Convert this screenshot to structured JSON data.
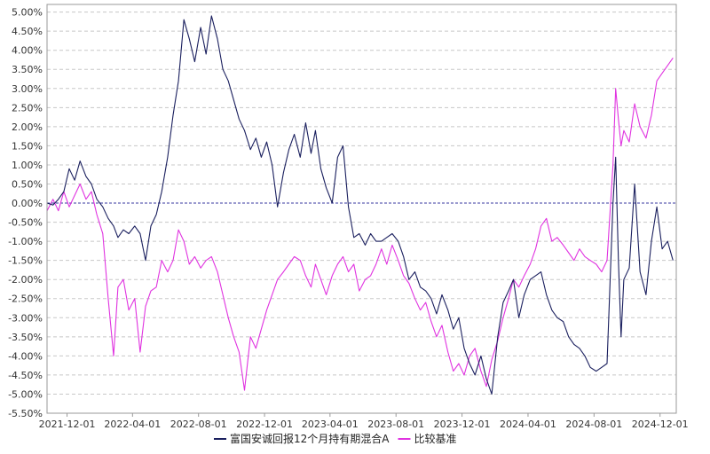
{
  "chart_data": {
    "type": "line",
    "title": "",
    "xlabel": "",
    "ylabel": "",
    "x_tick_labels": [
      "2021-12-01",
      "2022-04-01",
      "2022-08-01",
      "2022-12-01",
      "2023-04-01",
      "2023-08-01",
      "2023-12-01",
      "2024-04-01",
      "2024-08-01",
      "2024-12-01"
    ],
    "y_tick_labels": [
      "5.00%",
      "4.50%",
      "4.00%",
      "3.50%",
      "3.00%",
      "2.50%",
      "2.00%",
      "1.50%",
      "1.00%",
      "0.50%",
      "0.00%",
      "-0.50%",
      "-1.00%",
      "-1.50%",
      "-2.00%",
      "-2.50%",
      "-3.00%",
      "-3.50%",
      "-4.00%",
      "-4.50%",
      "-5.00%",
      "-5.50%"
    ],
    "ylim": [
      -5.5,
      5.2
    ],
    "y_unit": "%",
    "grid": true,
    "legend_position": "bottom-center",
    "zero_line": true,
    "series": [
      {
        "name": "富国安诚回报12个月持有期混合A",
        "color": "#1a1f5e",
        "points": [
          [
            "2021-10-25",
            0.0
          ],
          [
            "2021-11-05",
            -0.05
          ],
          [
            "2021-11-15",
            0.1
          ],
          [
            "2021-11-25",
            0.3
          ],
          [
            "2021-12-05",
            0.9
          ],
          [
            "2021-12-15",
            0.6
          ],
          [
            "2021-12-25",
            1.1
          ],
          [
            "2022-01-05",
            0.7
          ],
          [
            "2022-01-15",
            0.5
          ],
          [
            "2022-01-25",
            0.1
          ],
          [
            "2022-02-05",
            -0.1
          ],
          [
            "2022-02-15",
            -0.4
          ],
          [
            "2022-02-25",
            -0.6
          ],
          [
            "2022-03-05",
            -0.9
          ],
          [
            "2022-03-15",
            -0.7
          ],
          [
            "2022-03-25",
            -0.8
          ],
          [
            "2022-04-05",
            -0.6
          ],
          [
            "2022-04-15",
            -0.8
          ],
          [
            "2022-04-25",
            -1.5
          ],
          [
            "2022-05-05",
            -0.6
          ],
          [
            "2022-05-15",
            -0.3
          ],
          [
            "2022-05-25",
            0.3
          ],
          [
            "2022-06-05",
            1.2
          ],
          [
            "2022-06-15",
            2.3
          ],
          [
            "2022-06-25",
            3.2
          ],
          [
            "2022-07-05",
            4.8
          ],
          [
            "2022-07-15",
            4.3
          ],
          [
            "2022-07-25",
            3.7
          ],
          [
            "2022-08-05",
            4.6
          ],
          [
            "2022-08-15",
            3.9
          ],
          [
            "2022-08-25",
            4.9
          ],
          [
            "2022-09-05",
            4.3
          ],
          [
            "2022-09-15",
            3.5
          ],
          [
            "2022-09-25",
            3.2
          ],
          [
            "2022-10-05",
            2.7
          ],
          [
            "2022-10-15",
            2.2
          ],
          [
            "2022-10-25",
            1.9
          ],
          [
            "2022-11-05",
            1.4
          ],
          [
            "2022-11-15",
            1.7
          ],
          [
            "2022-11-25",
            1.2
          ],
          [
            "2022-12-05",
            1.6
          ],
          [
            "2022-12-15",
            1.0
          ],
          [
            "2022-12-25",
            -0.1
          ],
          [
            "2023-01-05",
            0.8
          ],
          [
            "2023-01-15",
            1.4
          ],
          [
            "2023-01-25",
            1.8
          ],
          [
            "2023-02-05",
            1.2
          ],
          [
            "2023-02-15",
            2.1
          ],
          [
            "2023-02-25",
            1.3
          ],
          [
            "2023-03-05",
            1.9
          ],
          [
            "2023-03-15",
            0.9
          ],
          [
            "2023-03-25",
            0.4
          ],
          [
            "2023-04-05",
            0.0
          ],
          [
            "2023-04-15",
            1.2
          ],
          [
            "2023-04-25",
            1.5
          ],
          [
            "2023-05-05",
            -0.1
          ],
          [
            "2023-05-15",
            -0.9
          ],
          [
            "2023-05-25",
            -0.8
          ],
          [
            "2023-06-05",
            -1.1
          ],
          [
            "2023-06-15",
            -0.8
          ],
          [
            "2023-06-25",
            -1.0
          ],
          [
            "2023-07-05",
            -1.0
          ],
          [
            "2023-07-15",
            -0.9
          ],
          [
            "2023-07-25",
            -0.8
          ],
          [
            "2023-08-05",
            -1.0
          ],
          [
            "2023-08-15",
            -1.4
          ],
          [
            "2023-08-25",
            -2.0
          ],
          [
            "2023-09-05",
            -1.8
          ],
          [
            "2023-09-15",
            -2.2
          ],
          [
            "2023-09-25",
            -2.3
          ],
          [
            "2023-10-05",
            -2.5
          ],
          [
            "2023-10-15",
            -2.9
          ],
          [
            "2023-10-25",
            -2.4
          ],
          [
            "2023-11-05",
            -2.8
          ],
          [
            "2023-11-15",
            -3.3
          ],
          [
            "2023-11-25",
            -3.0
          ],
          [
            "2023-12-05",
            -3.8
          ],
          [
            "2023-12-15",
            -4.2
          ],
          [
            "2023-12-25",
            -4.5
          ],
          [
            "2024-01-05",
            -4.0
          ],
          [
            "2024-01-15",
            -4.6
          ],
          [
            "2024-01-25",
            -5.0
          ],
          [
            "2024-02-05",
            -3.5
          ],
          [
            "2024-02-15",
            -2.6
          ],
          [
            "2024-02-25",
            -2.3
          ],
          [
            "2024-03-05",
            -2.0
          ],
          [
            "2024-03-15",
            -3.0
          ],
          [
            "2024-03-25",
            -2.4
          ],
          [
            "2024-04-05",
            -2.0
          ],
          [
            "2024-04-15",
            -1.9
          ],
          [
            "2024-04-25",
            -1.8
          ],
          [
            "2024-05-05",
            -2.4
          ],
          [
            "2024-05-15",
            -2.8
          ],
          [
            "2024-05-25",
            -3.0
          ],
          [
            "2024-06-05",
            -3.1
          ],
          [
            "2024-06-15",
            -3.5
          ],
          [
            "2024-06-25",
            -3.7
          ],
          [
            "2024-07-05",
            -3.8
          ],
          [
            "2024-07-15",
            -4.0
          ],
          [
            "2024-07-25",
            -4.3
          ],
          [
            "2024-08-05",
            -4.4
          ],
          [
            "2024-08-15",
            -4.3
          ],
          [
            "2024-08-25",
            -4.2
          ],
          [
            "2024-09-05",
            0.0
          ],
          [
            "2024-09-10",
            1.2
          ],
          [
            "2024-09-15",
            -1.5
          ],
          [
            "2024-09-20",
            -3.5
          ],
          [
            "2024-09-25",
            -2.0
          ],
          [
            "2024-10-05",
            -1.7
          ],
          [
            "2024-10-15",
            0.5
          ],
          [
            "2024-10-25",
            -1.8
          ],
          [
            "2024-11-05",
            -2.4
          ],
          [
            "2024-11-15",
            -1.0
          ],
          [
            "2024-11-25",
            -0.1
          ],
          [
            "2024-12-05",
            -1.2
          ],
          [
            "2024-12-15",
            -1.0
          ],
          [
            "2024-12-25",
            -1.5
          ]
        ]
      },
      {
        "name": "比较基准",
        "color": "#e033e0",
        "points": [
          [
            "2021-10-25",
            -0.2
          ],
          [
            "2021-11-05",
            0.1
          ],
          [
            "2021-11-15",
            -0.2
          ],
          [
            "2021-11-25",
            0.3
          ],
          [
            "2021-12-05",
            -0.1
          ],
          [
            "2021-12-15",
            0.2
          ],
          [
            "2021-12-25",
            0.5
          ],
          [
            "2022-01-05",
            0.1
          ],
          [
            "2022-01-15",
            0.3
          ],
          [
            "2022-01-25",
            -0.3
          ],
          [
            "2022-02-05",
            -0.8
          ],
          [
            "2022-02-15",
            -2.5
          ],
          [
            "2022-02-25",
            -4.0
          ],
          [
            "2022-03-05",
            -2.2
          ],
          [
            "2022-03-15",
            -2.0
          ],
          [
            "2022-03-25",
            -2.8
          ],
          [
            "2022-04-05",
            -2.5
          ],
          [
            "2022-04-15",
            -3.9
          ],
          [
            "2022-04-25",
            -2.7
          ],
          [
            "2022-05-05",
            -2.3
          ],
          [
            "2022-05-15",
            -2.2
          ],
          [
            "2022-05-25",
            -1.5
          ],
          [
            "2022-06-05",
            -1.8
          ],
          [
            "2022-06-15",
            -1.5
          ],
          [
            "2022-06-25",
            -0.7
          ],
          [
            "2022-07-05",
            -1.0
          ],
          [
            "2022-07-15",
            -1.6
          ],
          [
            "2022-07-25",
            -1.4
          ],
          [
            "2022-08-05",
            -1.7
          ],
          [
            "2022-08-15",
            -1.5
          ],
          [
            "2022-08-25",
            -1.4
          ],
          [
            "2022-09-05",
            -1.8
          ],
          [
            "2022-09-15",
            -2.4
          ],
          [
            "2022-09-25",
            -3.0
          ],
          [
            "2022-10-05",
            -3.5
          ],
          [
            "2022-10-15",
            -3.9
          ],
          [
            "2022-10-25",
            -4.9
          ],
          [
            "2022-11-05",
            -3.5
          ],
          [
            "2022-11-15",
            -3.8
          ],
          [
            "2022-11-25",
            -3.3
          ],
          [
            "2022-12-05",
            -2.8
          ],
          [
            "2022-12-15",
            -2.4
          ],
          [
            "2022-12-25",
            -2.0
          ],
          [
            "2023-01-05",
            -1.8
          ],
          [
            "2023-01-15",
            -1.6
          ],
          [
            "2023-01-25",
            -1.4
          ],
          [
            "2023-02-05",
            -1.5
          ],
          [
            "2023-02-15",
            -1.9
          ],
          [
            "2023-02-25",
            -2.2
          ],
          [
            "2023-03-05",
            -1.6
          ],
          [
            "2023-03-15",
            -2.0
          ],
          [
            "2023-03-25",
            -2.4
          ],
          [
            "2023-04-05",
            -1.9
          ],
          [
            "2023-04-15",
            -1.6
          ],
          [
            "2023-04-25",
            -1.4
          ],
          [
            "2023-05-05",
            -1.8
          ],
          [
            "2023-05-15",
            -1.6
          ],
          [
            "2023-05-25",
            -2.3
          ],
          [
            "2023-06-05",
            -2.0
          ],
          [
            "2023-06-15",
            -1.9
          ],
          [
            "2023-06-25",
            -1.6
          ],
          [
            "2023-07-05",
            -1.2
          ],
          [
            "2023-07-15",
            -1.6
          ],
          [
            "2023-07-25",
            -1.1
          ],
          [
            "2023-08-05",
            -1.5
          ],
          [
            "2023-08-15",
            -1.9
          ],
          [
            "2023-08-25",
            -2.1
          ],
          [
            "2023-09-05",
            -2.5
          ],
          [
            "2023-09-15",
            -2.8
          ],
          [
            "2023-09-25",
            -2.6
          ],
          [
            "2023-10-05",
            -3.1
          ],
          [
            "2023-10-15",
            -3.5
          ],
          [
            "2023-10-25",
            -3.2
          ],
          [
            "2023-11-05",
            -3.9
          ],
          [
            "2023-11-15",
            -4.4
          ],
          [
            "2023-11-25",
            -4.2
          ],
          [
            "2023-12-05",
            -4.5
          ],
          [
            "2023-12-15",
            -4.0
          ],
          [
            "2023-12-25",
            -3.8
          ],
          [
            "2024-01-05",
            -4.4
          ],
          [
            "2024-01-15",
            -4.8
          ],
          [
            "2024-01-25",
            -4.1
          ],
          [
            "2024-02-05",
            -3.6
          ],
          [
            "2024-02-15",
            -3.0
          ],
          [
            "2024-02-25",
            -2.5
          ],
          [
            "2024-03-05",
            -2.0
          ],
          [
            "2024-03-15",
            -2.2
          ],
          [
            "2024-03-25",
            -1.9
          ],
          [
            "2024-04-05",
            -1.6
          ],
          [
            "2024-04-15",
            -1.2
          ],
          [
            "2024-04-25",
            -0.6
          ],
          [
            "2024-05-05",
            -0.4
          ],
          [
            "2024-05-15",
            -1.0
          ],
          [
            "2024-05-25",
            -0.9
          ],
          [
            "2024-06-05",
            -1.1
          ],
          [
            "2024-06-15",
            -1.3
          ],
          [
            "2024-06-25",
            -1.5
          ],
          [
            "2024-07-05",
            -1.2
          ],
          [
            "2024-07-15",
            -1.4
          ],
          [
            "2024-07-25",
            -1.5
          ],
          [
            "2024-08-05",
            -1.6
          ],
          [
            "2024-08-15",
            -1.8
          ],
          [
            "2024-08-25",
            -1.5
          ],
          [
            "2024-09-05",
            1.0
          ],
          [
            "2024-09-10",
            3.0
          ],
          [
            "2024-09-15",
            2.2
          ],
          [
            "2024-09-20",
            1.5
          ],
          [
            "2024-09-25",
            1.9
          ],
          [
            "2024-10-05",
            1.6
          ],
          [
            "2024-10-15",
            2.6
          ],
          [
            "2024-10-25",
            2.0
          ],
          [
            "2024-11-05",
            1.7
          ],
          [
            "2024-11-15",
            2.3
          ],
          [
            "2024-11-25",
            3.2
          ],
          [
            "2024-12-05",
            3.4
          ],
          [
            "2024-12-15",
            3.6
          ],
          [
            "2024-12-25",
            3.8
          ]
        ]
      }
    ]
  }
}
